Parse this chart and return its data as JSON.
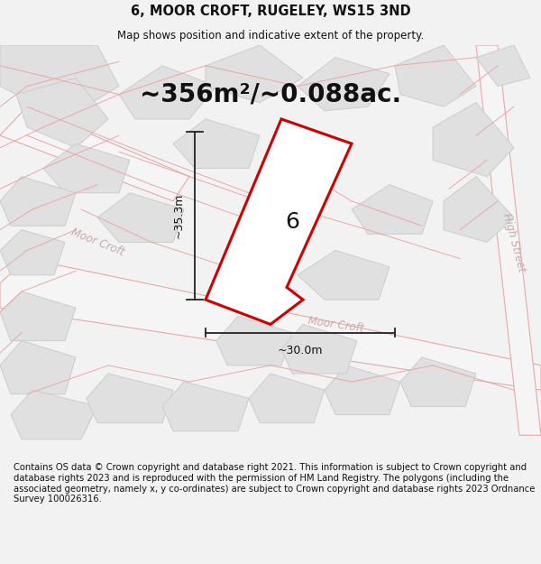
{
  "title": "6, MOOR CROFT, RUGELEY, WS15 3ND",
  "subtitle": "Map shows position and indicative extent of the property.",
  "area_text": "~356m²/~0.088ac.",
  "dim_width": "~30.0m",
  "dim_height": "~35.3m",
  "plot_label": "6",
  "footer": "Contains OS data © Crown copyright and database right 2021. This information is subject to Crown copyright and database rights 2023 and is reproduced with the permission of HM Land Registry. The polygons (including the associated geometry, namely x, y co-ordinates) are subject to Crown copyright and database rights 2023 Ordnance Survey 100026316.",
  "bg_color": "#f2f2f2",
  "building_fill": "#e0e0e0",
  "building_edge": "#cccccc",
  "road_fill": "#f2f2f2",
  "road_edge": "#e8a8a8",
  "plot_fill": "#ffffff",
  "plot_edge": "#cc0000",
  "dim_color": "#222222",
  "street_label_color": "#c8a8a8",
  "title_fontsize": 10.5,
  "subtitle_fontsize": 8.5,
  "area_fontsize": 20,
  "plot_label_fontsize": 18,
  "footer_fontsize": 7.2,
  "street_fontsize": 8.5
}
